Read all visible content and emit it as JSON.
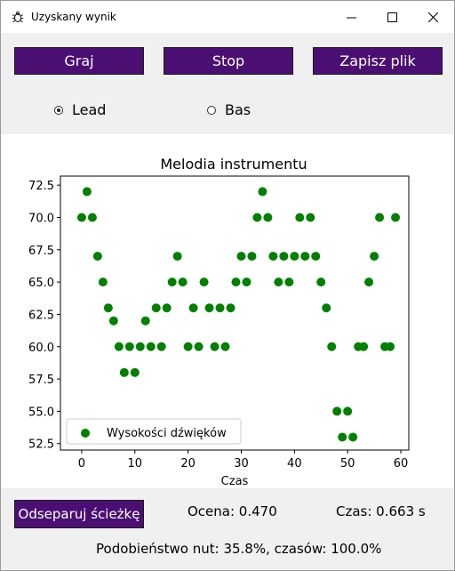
{
  "window": {
    "title": "Uzyskany wynik"
  },
  "toolbar": {
    "play_label": "Graj",
    "stop_label": "Stop",
    "save_label": "Zapisz plik"
  },
  "track_selector": {
    "options": [
      "Lead",
      "Bas"
    ],
    "selected": "Lead"
  },
  "results": {
    "separate_button_label": "Odseparuj ścieżkę",
    "score": "Ocena: 0.470",
    "time": "Czas: 0.663 s",
    "similarity": "Podobieństwo nut: 35.8%, czasów: 100.0%"
  },
  "chart_data": {
    "type": "scatter",
    "title": "Melodia instrumentu",
    "xlabel": "Czas",
    "ylabel": "",
    "xlim": [
      -4,
      61.5
    ],
    "ylim": [
      52,
      73.2
    ],
    "xticks": [
      0,
      10,
      20,
      30,
      40,
      50,
      60
    ],
    "yticks": [
      52.5,
      55.0,
      57.5,
      60.0,
      62.5,
      65.0,
      67.5,
      70.0,
      72.5
    ],
    "grid": false,
    "legend_position": "lower-left",
    "series": [
      {
        "name": "Wysokości dźwięków",
        "color": "#008000",
        "x": [
          0,
          1,
          2,
          3,
          4,
          5,
          6,
          7,
          8,
          9,
          10,
          11,
          12,
          13,
          14,
          15,
          16,
          17,
          18,
          19,
          20,
          21,
          22,
          23,
          24,
          25,
          26,
          27,
          28,
          29,
          30,
          31,
          32,
          33,
          34,
          35,
          36,
          37,
          38,
          39,
          40,
          41,
          42,
          43,
          44,
          45,
          46,
          47,
          48,
          49,
          50,
          51,
          52,
          53,
          54,
          55,
          56,
          57,
          58,
          59
        ],
        "y": [
          70,
          72,
          70,
          67,
          65,
          63,
          62,
          60,
          58,
          60,
          58,
          60,
          62,
          60,
          63,
          60,
          63,
          65,
          67,
          65,
          60,
          63,
          60,
          65,
          63,
          60,
          63,
          60,
          63,
          65,
          67,
          65,
          67,
          70,
          72,
          70,
          67,
          65,
          67,
          65,
          67,
          70,
          67,
          70,
          67,
          65,
          63,
          60,
          55,
          53,
          55,
          53,
          60,
          60,
          65,
          67,
          70,
          60,
          60,
          70
        ]
      }
    ]
  }
}
